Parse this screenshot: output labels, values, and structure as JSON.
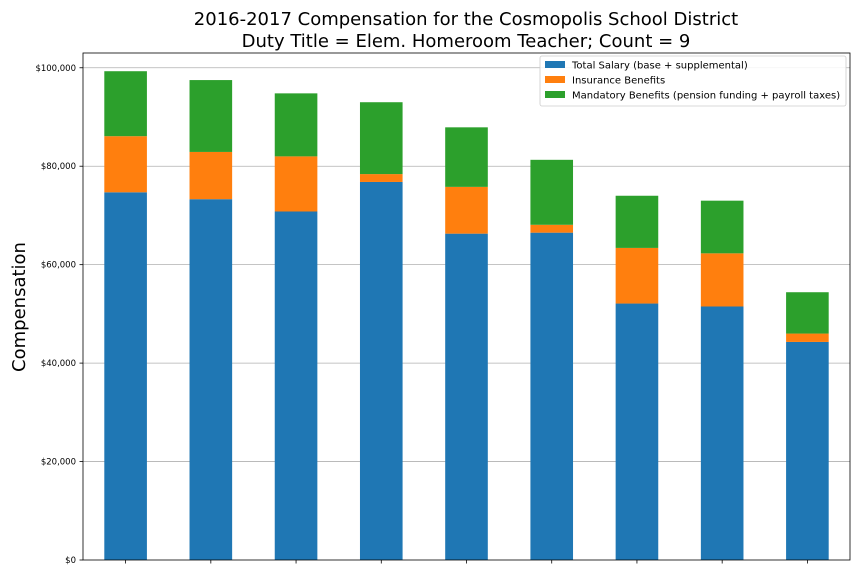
{
  "chart_data": {
    "type": "bar",
    "stacked": true,
    "title_lines": [
      "2016-2017 Compensation for the Cosmopolis School District",
      "Duty Title = Elem. Homeroom Teacher; Count = 9"
    ],
    "xlabel": "",
    "ylabel": "Compensation",
    "ylim": [
      0,
      103000
    ],
    "y_ticks": [
      0,
      20000,
      40000,
      60000,
      80000,
      100000
    ],
    "y_tick_labels": [
      "$0",
      "$20,000",
      "$40,000",
      "$60,000",
      "$80,000",
      "$100,000"
    ],
    "grid": "y",
    "legend_position": "top-right",
    "categories": [
      "",
      "",
      "",
      "",
      "",
      "",
      "",
      "",
      ""
    ],
    "series": [
      {
        "name": "Total Salary (base + supplemental)",
        "color": "#1f77b4",
        "values": [
          74700,
          73300,
          70800,
          76800,
          66300,
          66500,
          52100,
          51500,
          44300
        ]
      },
      {
        "name": "Insurance Benefits",
        "color": "#ff7f0e",
        "values": [
          11400,
          9600,
          11200,
          1600,
          9500,
          1600,
          11300,
          10800,
          1700
        ]
      },
      {
        "name": "Mandatory Benefits (pension funding + payroll taxes)",
        "color": "#2ca02c",
        "values": [
          13200,
          14600,
          12800,
          14600,
          12100,
          13200,
          10600,
          10700,
          8400
        ]
      }
    ]
  }
}
